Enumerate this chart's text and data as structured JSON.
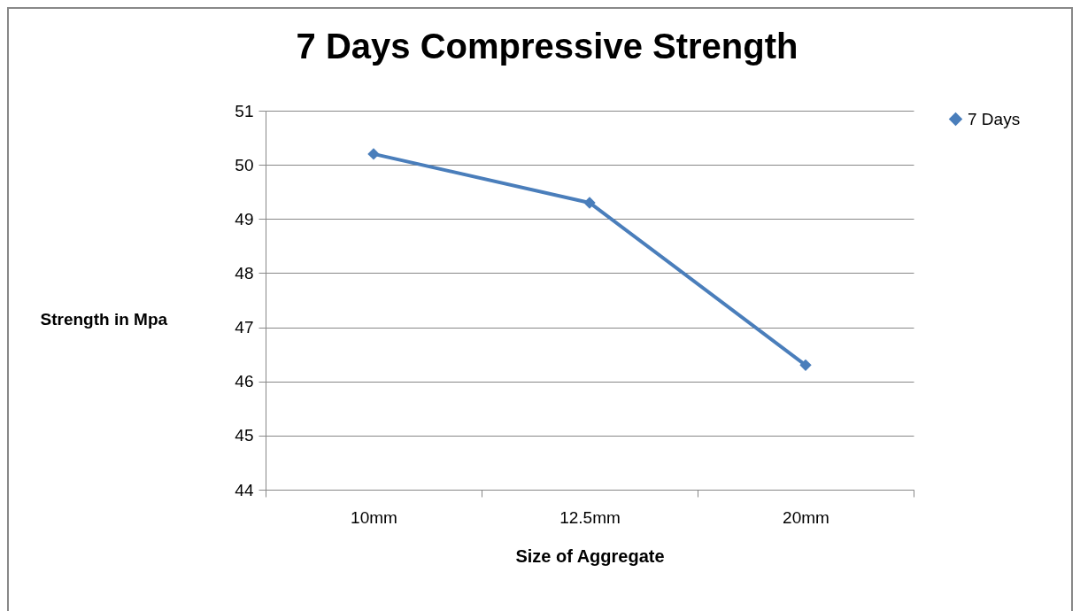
{
  "chart_data": {
    "type": "line",
    "title": "7 Days Compressive Strength",
    "xlabel": "Size of Aggregate",
    "ylabel": "Strength in Mpa",
    "categories": [
      "10mm",
      "12.5mm",
      "20mm"
    ],
    "series": [
      {
        "name": "7 Days",
        "color": "#4a7ebb",
        "values": [
          50.2,
          49.3,
          46.3
        ]
      }
    ],
    "ylim": [
      44,
      51
    ],
    "yticks": [
      44,
      45,
      46,
      47,
      48,
      49,
      50,
      51
    ],
    "grid": "y",
    "legend": "right",
    "marker": "diamond",
    "line_style": "solid"
  }
}
